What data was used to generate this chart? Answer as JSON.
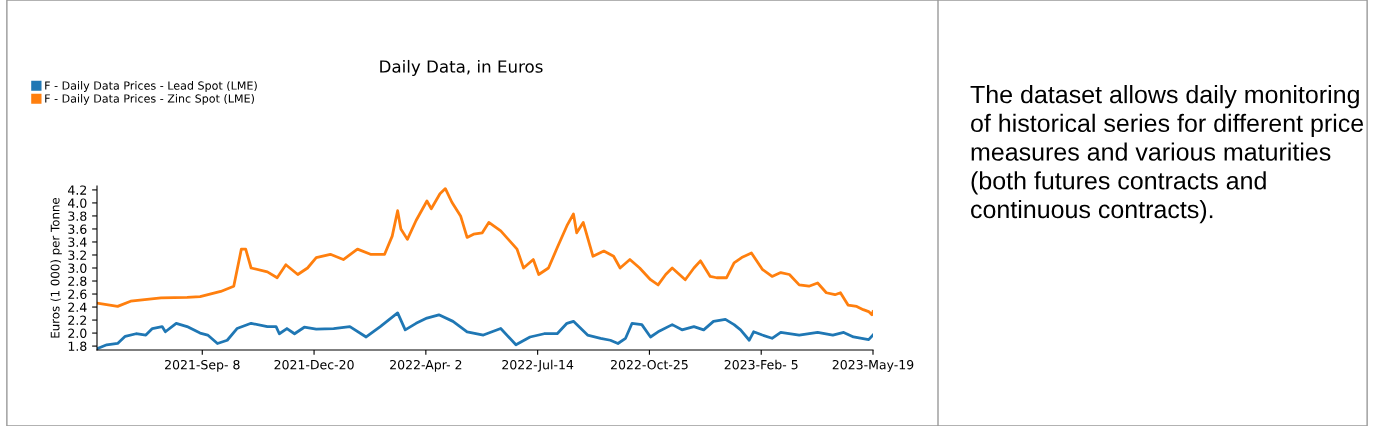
{
  "chart_data": [
    {
      "type": "line",
      "title": "Daily Data, in Euros",
      "ylabel": "Euros (1 000) per Tonne",
      "legend": "top left",
      "grid": false,
      "marker": "none",
      "line_style": "solid",
      "xlim": [
        "2021-06-03",
        "2023-05-19"
      ],
      "xticks": [
        {
          "value": "2021-09-08",
          "label": "2021-Sep- 8"
        },
        {
          "value": "2021-12-20",
          "label": "2021-Dec-20"
        },
        {
          "value": "2022-04-02",
          "label": "2022-Apr- 2"
        },
        {
          "value": "2022-07-14",
          "label": "2022-Jul-14"
        },
        {
          "value": "2022-10-25",
          "label": "2022-Oct-25"
        },
        {
          "value": "2023-02-05",
          "label": "2023-Feb- 5"
        },
        {
          "value": "2023-05-19",
          "label": "2023-May-19"
        }
      ],
      "ylim": [
        1.74,
        4.26
      ],
      "yticks": [
        1.8,
        {
          "value": 2,
          "label": "2.0"
        },
        2.2,
        2.4,
        2.6,
        2.8,
        {
          "value": 3,
          "label": "3.0"
        },
        3.2,
        3.4,
        3.6,
        3.8,
        {
          "value": 4,
          "label": "4.0"
        },
        4.2
      ],
      "series": [
        {
          "name": "F - Daily Data Prices - Lead Spot (LME)",
          "color": "#1f77b4",
          "x": [
            "2021-06-03",
            "2021-06-12",
            "2021-06-22",
            "2021-06-29",
            "2021-07-09",
            "2021-07-18",
            "2021-07-24",
            "2021-08-02",
            "2021-08-05",
            "2021-08-15",
            "2021-08-25",
            "2021-09-06",
            "2021-09-13",
            "2021-09-22",
            "2021-10-01",
            "2021-10-10",
            "2021-10-23",
            "2021-11-07",
            "2021-11-15",
            "2021-11-18",
            "2021-11-25",
            "2021-12-02",
            "2021-12-11",
            "2021-12-22",
            "2022-01-07",
            "2022-01-22",
            "2022-02-06",
            "2022-02-19",
            "2022-03-07",
            "2022-03-14",
            "2022-03-24",
            "2022-04-03",
            "2022-04-14",
            "2022-04-27",
            "2022-05-10",
            "2022-05-25",
            "2022-06-10",
            "2022-06-24",
            "2022-07-07",
            "2022-07-20",
            "2022-08-01",
            "2022-08-10",
            "2022-08-16",
            "2022-08-29",
            "2022-09-10",
            "2022-09-19",
            "2022-09-26",
            "2022-10-03",
            "2022-10-09",
            "2022-10-18",
            "2022-10-26",
            "2022-11-02",
            "2022-11-15",
            "2022-11-24",
            "2022-12-05",
            "2022-12-14",
            "2022-12-23",
            "2023-01-03",
            "2023-01-11",
            "2023-01-17",
            "2023-01-25",
            "2023-01-29",
            "2023-02-06",
            "2023-02-15",
            "2023-02-23",
            "2023-03-12",
            "2023-03-29",
            "2023-04-12",
            "2023-04-22",
            "2023-05-01",
            "2023-05-15",
            "2023-05-19"
          ],
          "values": [
            1.76,
            1.82,
            1.84,
            1.95,
            1.99,
            1.97,
            2.07,
            2.1,
            2.02,
            2.15,
            2.1,
            2.0,
            1.97,
            1.84,
            1.89,
            2.07,
            2.15,
            2.1,
            2.1,
            1.99,
            2.07,
            1.99,
            2.09,
            2.06,
            2.07,
            2.1,
            1.94,
            2.1,
            2.31,
            2.05,
            2.15,
            2.23,
            2.28,
            2.18,
            2.02,
            1.97,
            2.07,
            1.82,
            1.94,
            1.99,
            1.99,
            2.15,
            2.18,
            1.97,
            1.92,
            1.89,
            1.84,
            1.92,
            2.15,
            2.13,
            1.94,
            2.02,
            2.13,
            2.05,
            2.1,
            2.05,
            2.18,
            2.21,
            2.13,
            2.05,
            1.89,
            2.02,
            1.97,
            1.92,
            2.01,
            1.97,
            2.01,
            1.97,
            2.01,
            1.94,
            1.9,
            1.97
          ]
        },
        {
          "name": "F - Daily Data Prices - Zinc Spot (LME)",
          "color": "#ff7f0e",
          "x": [
            "2021-06-03",
            "2021-06-22",
            "2021-07-04",
            "2021-08-01",
            "2021-08-25",
            "2021-09-06",
            "2021-09-25",
            "2021-10-07",
            "2021-10-14",
            "2021-10-18",
            "2021-10-23",
            "2021-11-07",
            "2021-11-16",
            "2021-11-24",
            "2021-12-05",
            "2021-12-14",
            "2021-12-22",
            "2022-01-04",
            "2022-01-16",
            "2022-01-29",
            "2022-02-10",
            "2022-02-23",
            "2022-03-02",
            "2022-03-07",
            "2022-03-10",
            "2022-03-16",
            "2022-03-24",
            "2022-04-03",
            "2022-04-07",
            "2022-04-15",
            "2022-04-20",
            "2022-04-26",
            "2022-05-04",
            "2022-05-10",
            "2022-05-16",
            "2022-05-24",
            "2022-05-30",
            "2022-06-10",
            "2022-06-25",
            "2022-07-01",
            "2022-07-10",
            "2022-07-15",
            "2022-07-24",
            "2022-08-01",
            "2022-08-10",
            "2022-08-16",
            "2022-08-19",
            "2022-08-25",
            "2022-09-03",
            "2022-09-13",
            "2022-09-22",
            "2022-09-28",
            "2022-10-07",
            "2022-10-16",
            "2022-10-26",
            "2022-11-02",
            "2022-11-09",
            "2022-11-15",
            "2022-11-27",
            "2022-12-05",
            "2022-12-11",
            "2022-12-20",
            "2022-12-26",
            "2023-01-04",
            "2023-01-11",
            "2023-01-18",
            "2023-01-27",
            "2023-02-06",
            "2023-02-15",
            "2023-02-23",
            "2023-03-03",
            "2023-03-12",
            "2023-03-21",
            "2023-03-29",
            "2023-04-06",
            "2023-04-14",
            "2023-04-19",
            "2023-04-26",
            "2023-05-04",
            "2023-05-10",
            "2023-05-15",
            "2023-05-18",
            "2023-05-19"
          ],
          "values": [
            2.46,
            2.41,
            2.49,
            2.54,
            2.55,
            2.56,
            2.64,
            2.72,
            3.29,
            3.29,
            3.0,
            2.94,
            2.85,
            3.05,
            2.9,
            3.0,
            3.16,
            3.21,
            3.13,
            3.29,
            3.21,
            3.21,
            3.49,
            3.88,
            3.6,
            3.44,
            3.73,
            4.03,
            3.91,
            4.14,
            4.22,
            4.01,
            3.8,
            3.47,
            3.52,
            3.54,
            3.7,
            3.57,
            3.29,
            3.0,
            3.13,
            2.9,
            3.0,
            3.31,
            3.65,
            3.83,
            3.54,
            3.7,
            3.18,
            3.26,
            3.18,
            3.0,
            3.13,
            3.0,
            2.82,
            2.74,
            2.9,
            3.0,
            2.82,
            3.0,
            3.11,
            2.87,
            2.85,
            2.85,
            3.08,
            3.16,
            3.23,
            2.98,
            2.87,
            2.93,
            2.9,
            2.74,
            2.72,
            2.77,
            2.62,
            2.59,
            2.62,
            2.43,
            2.41,
            2.36,
            2.33,
            2.28,
            2.33
          ]
        }
      ]
    },
    {
      "type": "other",
      "annotations": [
        "The dataset allows daily monitoring of historical series for different price measures and various maturities (both futures contracts and continuous contracts)."
      ]
    }
  ]
}
